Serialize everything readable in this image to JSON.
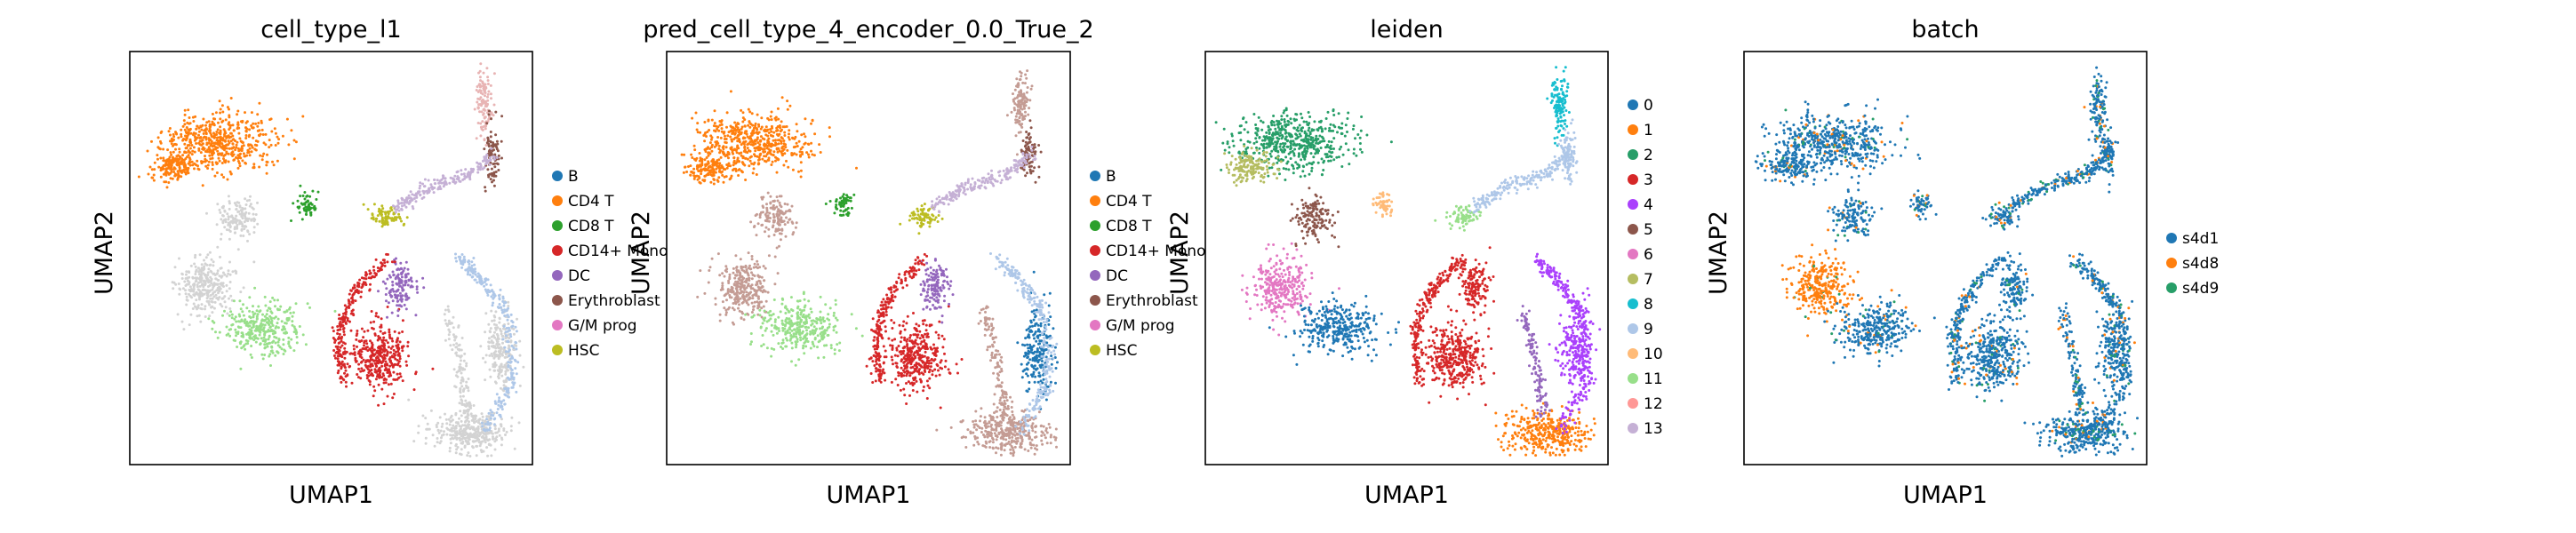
{
  "figure": {
    "panels": [
      {
        "title": "cell_type_l1",
        "xlabel": "UMAP1",
        "ylabel": "UMAP2",
        "legend": [
          {
            "label": "B",
            "color": "#1f77b4"
          },
          {
            "label": "CD4 T",
            "color": "#ff7f0e"
          },
          {
            "label": "CD8 T",
            "color": "#2ca02c"
          },
          {
            "label": "CD14+ Mono",
            "color": "#d62728"
          },
          {
            "label": "DC",
            "color": "#9467bd"
          },
          {
            "label": "Erythroblast",
            "color": "#8c564b"
          },
          {
            "label": "G/M prog",
            "color": "#e377c2"
          },
          {
            "label": "HSC",
            "color": "#bcbd22"
          }
        ]
      },
      {
        "title": "pred_cell_type_4_encoder_0.0_True_2",
        "xlabel": "UMAP1",
        "ylabel": "UMAP2",
        "legend": [
          {
            "label": "B",
            "color": "#1f77b4"
          },
          {
            "label": "CD4 T",
            "color": "#ff7f0e"
          },
          {
            "label": "CD8 T",
            "color": "#2ca02c"
          },
          {
            "label": "CD14+ Mono",
            "color": "#d62728"
          },
          {
            "label": "DC",
            "color": "#9467bd"
          },
          {
            "label": "Erythroblast",
            "color": "#8c564b"
          },
          {
            "label": "G/M prog",
            "color": "#e377c2"
          },
          {
            "label": "HSC",
            "color": "#bcbd22"
          }
        ]
      },
      {
        "title": "leiden",
        "xlabel": "UMAP1",
        "ylabel": "UMAP2",
        "legend": [
          {
            "label": "0",
            "color": "#1f77b4"
          },
          {
            "label": "1",
            "color": "#ff7f0e"
          },
          {
            "label": "2",
            "color": "#279e68"
          },
          {
            "label": "3",
            "color": "#d62728"
          },
          {
            "label": "4",
            "color": "#aa40fc"
          },
          {
            "label": "5",
            "color": "#8c564b"
          },
          {
            "label": "6",
            "color": "#e377c2"
          },
          {
            "label": "7",
            "color": "#b5bd61"
          },
          {
            "label": "8",
            "color": "#17becf"
          },
          {
            "label": "9",
            "color": "#aec7e8"
          },
          {
            "label": "10",
            "color": "#ffbb78"
          },
          {
            "label": "11",
            "color": "#98df8a"
          },
          {
            "label": "12",
            "color": "#ff9896"
          },
          {
            "label": "13",
            "color": "#c5b0d5"
          }
        ]
      },
      {
        "title": "batch",
        "xlabel": "UMAP1",
        "ylabel": "UMAP2",
        "legend": [
          {
            "label": "s4d1",
            "color": "#1f77b4"
          },
          {
            "label": "s4d8",
            "color": "#ff7f0e"
          },
          {
            "label": "s4d9",
            "color": "#279e68"
          }
        ]
      }
    ]
  },
  "chart_data": [
    {
      "type": "scatter",
      "title": "cell_type_l1",
      "xlabel": "UMAP1",
      "ylabel": "UMAP2",
      "grid": false,
      "legend_position": "right",
      "categories": [
        "B",
        "CD4 T",
        "CD8 T",
        "CD14+ Mono",
        "DC",
        "Erythroblast",
        "G/M prog",
        "HSC"
      ],
      "colors": [
        "#1f77b4",
        "#ff7f0e",
        "#2ca02c",
        "#d62728",
        "#9467bd",
        "#8c564b",
        "#e377c2",
        "#bcbd22"
      ],
      "other_color": "#d3d3d3"
    },
    {
      "type": "scatter",
      "title": "pred_cell_type_4_encoder_0.0_True_2",
      "xlabel": "UMAP1",
      "ylabel": "UMAP2",
      "grid": false,
      "legend_position": "right",
      "categories": [
        "B",
        "CD4 T",
        "CD8 T",
        "CD14+ Mono",
        "DC",
        "Erythroblast",
        "G/M prog",
        "HSC"
      ],
      "colors": [
        "#1f77b4",
        "#ff7f0e",
        "#2ca02c",
        "#d62728",
        "#9467bd",
        "#8c564b",
        "#e377c2",
        "#bcbd22"
      ],
      "other_color": "#c49c94"
    },
    {
      "type": "scatter",
      "title": "leiden",
      "xlabel": "UMAP1",
      "ylabel": "UMAP2",
      "grid": false,
      "legend_position": "right",
      "categories": [
        "0",
        "1",
        "2",
        "3",
        "4",
        "5",
        "6",
        "7",
        "8",
        "9",
        "10",
        "11",
        "12",
        "13"
      ],
      "colors": [
        "#1f77b4",
        "#ff7f0e",
        "#279e68",
        "#d62728",
        "#aa40fc",
        "#8c564b",
        "#e377c2",
        "#b5bd61",
        "#17becf",
        "#aec7e8",
        "#ffbb78",
        "#98df8a",
        "#ff9896",
        "#c5b0d5"
      ]
    },
    {
      "type": "scatter",
      "title": "batch",
      "xlabel": "UMAP1",
      "ylabel": "UMAP2",
      "grid": false,
      "legend_position": "right",
      "categories": [
        "s4d1",
        "s4d8",
        "s4d9"
      ],
      "colors": [
        "#1f77b4",
        "#ff7f0e",
        "#279e68"
      ]
    }
  ]
}
